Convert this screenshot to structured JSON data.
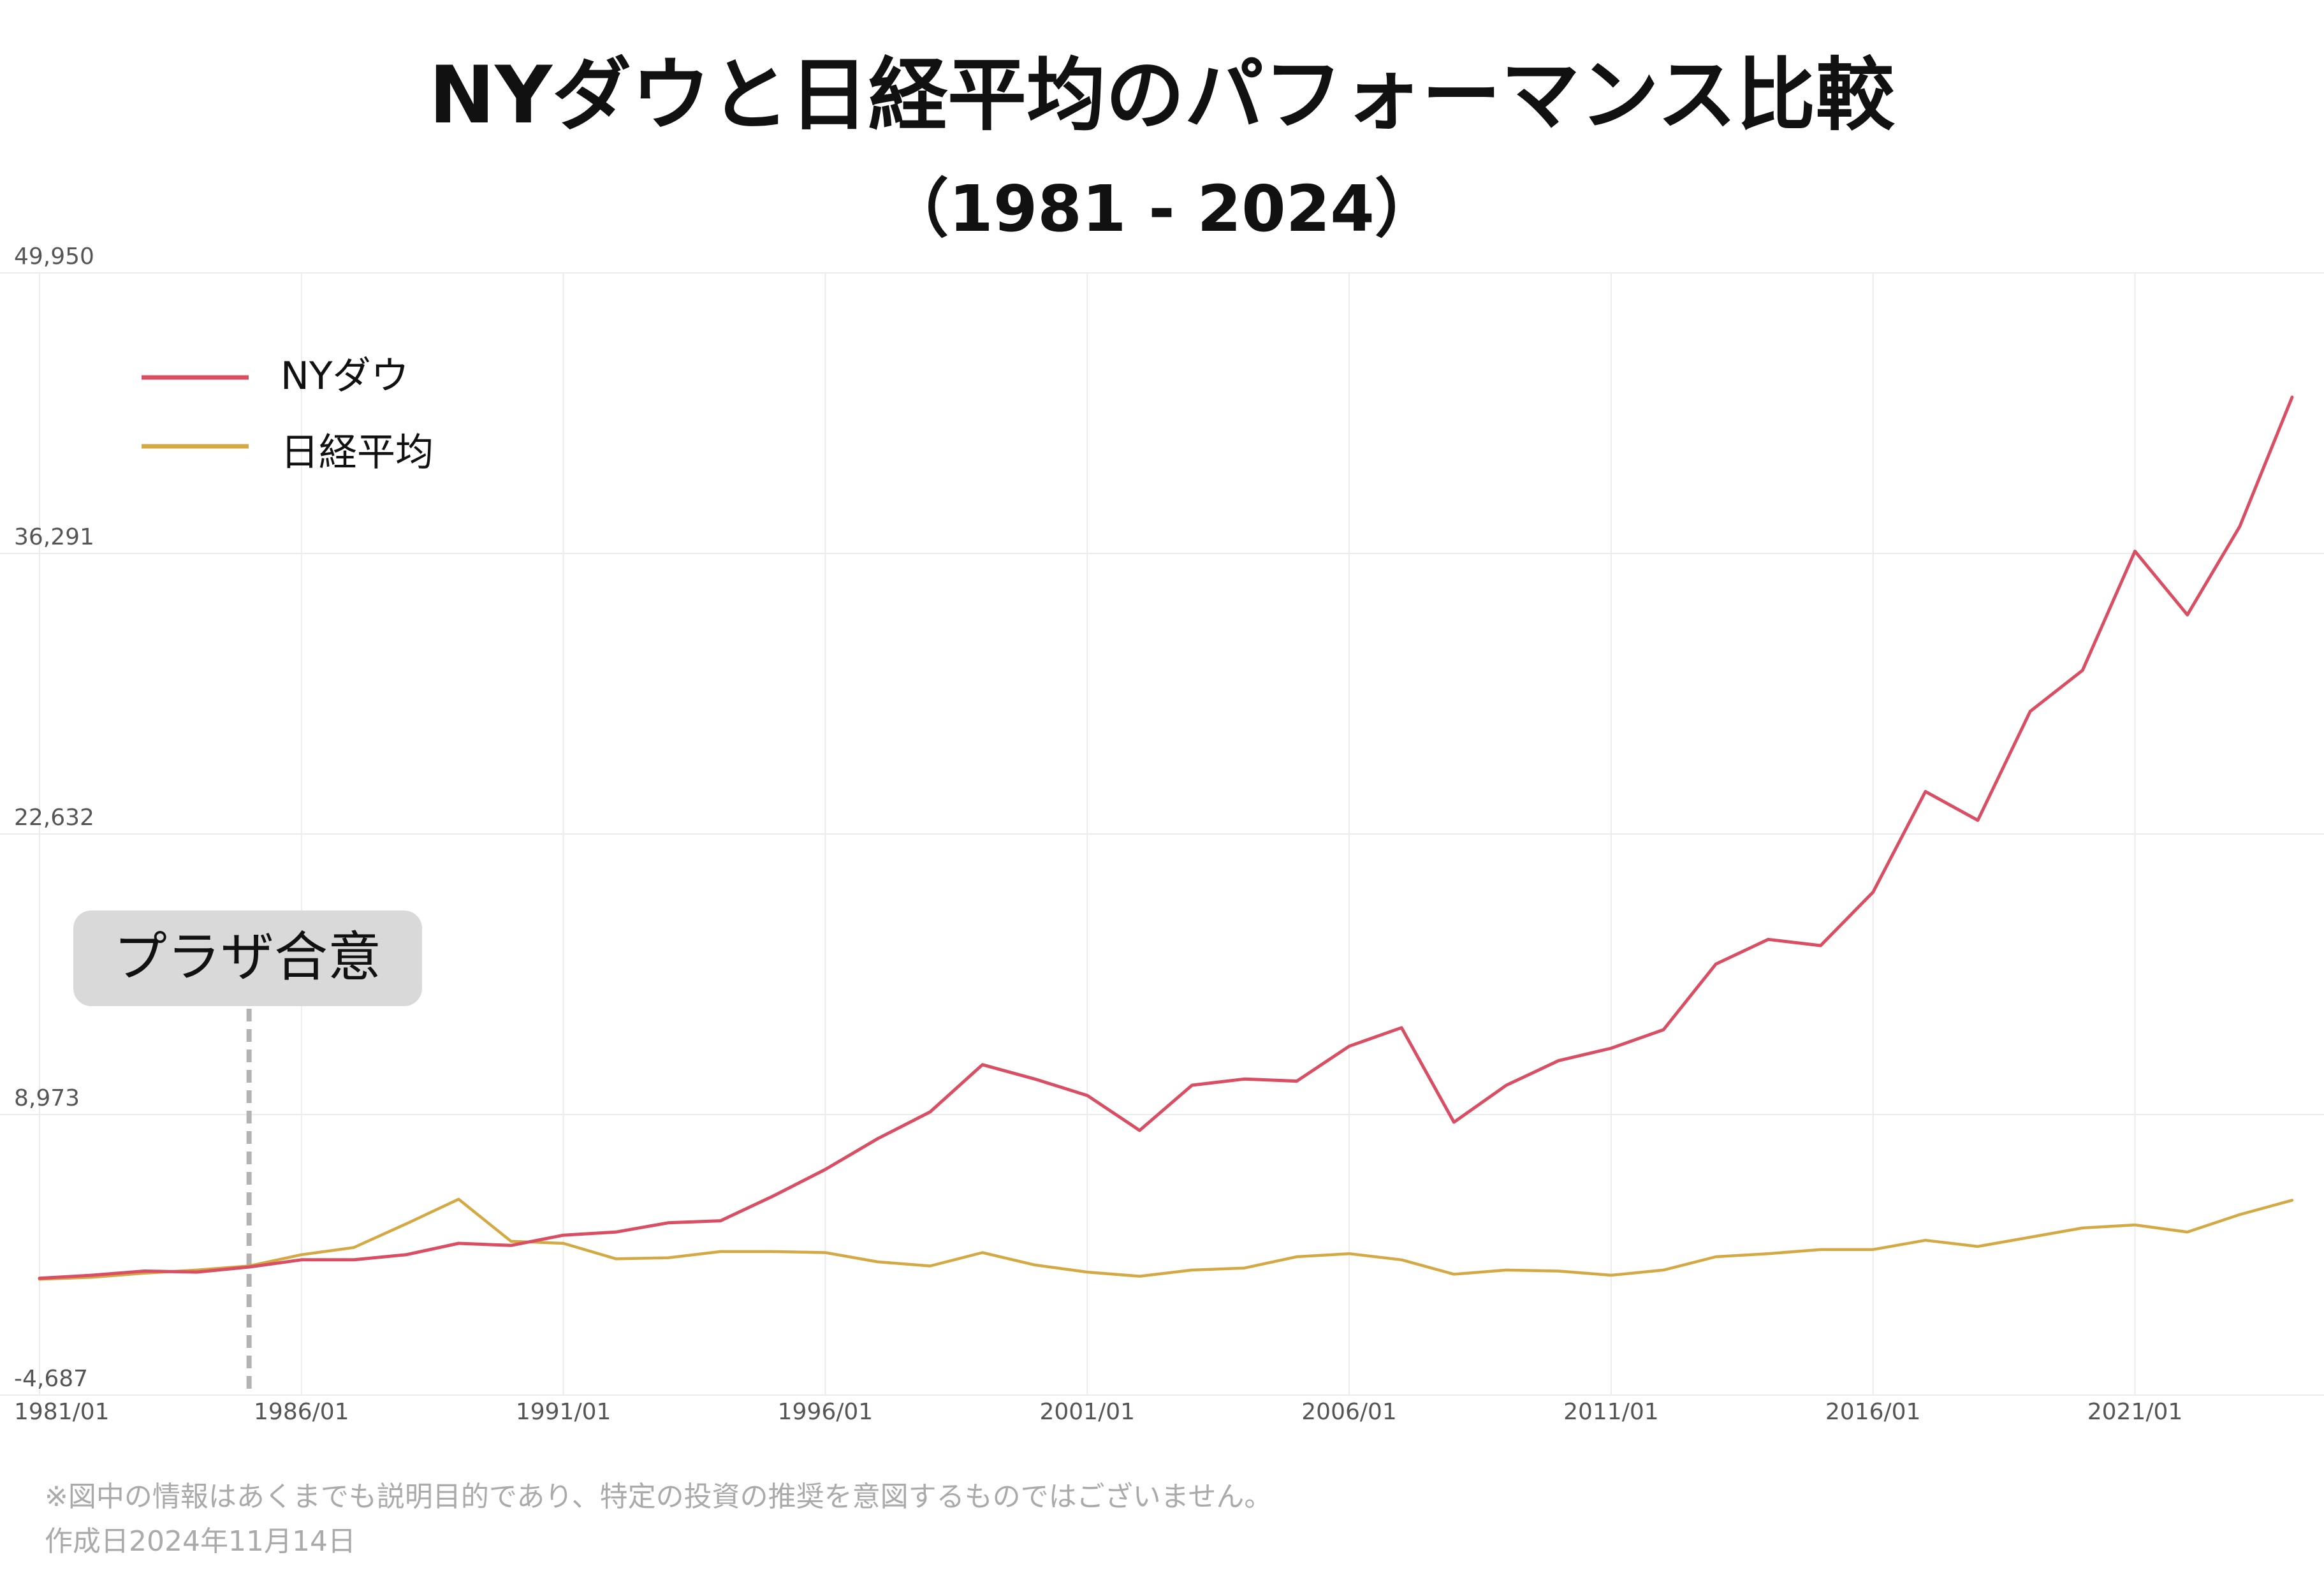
{
  "title": "NYダウと日経平均のパフォーマンス比較",
  "subtitle": "（1981 - 2024）",
  "annotation": {
    "label": "プラザ合意",
    "x": 1985.0
  },
  "footnote": "※図中の情報はあくまでも説明目的であり、特定の投資の推奨を意図するものではございません。",
  "created_date": "作成日2024年11月14日",
  "chart_data": {
    "type": "line",
    "legend_position": "top-left",
    "grid": true,
    "ylim": [
      -4687,
      49950
    ],
    "y_ticks": [
      -4687,
      8973,
      22632,
      36291,
      49950
    ],
    "y_tick_labels": [
      "-4,687",
      "8,973",
      "22,632",
      "36,291",
      "49,950"
    ],
    "xlim": [
      1981,
      2024
    ],
    "x_ticks": [
      1981,
      1986,
      1991,
      1996,
      2001,
      2006,
      2011,
      2016,
      2021
    ],
    "x_tick_labels": [
      "1981/01",
      "1986/01",
      "1991/01",
      "1996/01",
      "2001/01",
      "2006/01",
      "2011/01",
      "2016/01",
      "2021/01"
    ],
    "x": [
      1981,
      1982,
      1983,
      1984,
      1985,
      1986,
      1987,
      1988,
      1989,
      1990,
      1991,
      1992,
      1993,
      1994,
      1995,
      1996,
      1997,
      1998,
      1999,
      2000,
      2001,
      2002,
      2003,
      2004,
      2005,
      2006,
      2007,
      2008,
      2009,
      2010,
      2011,
      2012,
      2013,
      2014,
      2015,
      2016,
      2017,
      2018,
      2019,
      2020,
      2021,
      2022,
      2023,
      2024
    ],
    "series": [
      {
        "name": "NYダウ",
        "color": "#d94e62",
        "values": [
          1000,
          1150,
          1350,
          1300,
          1550,
          1900,
          1900,
          2150,
          2700,
          2600,
          3100,
          3250,
          3700,
          3800,
          5000,
          6300,
          7800,
          9100,
          11400,
          10700,
          9900,
          8200,
          10400,
          10700,
          10600,
          12300,
          13200,
          8600,
          10400,
          11600,
          12200,
          13100,
          16300,
          17500,
          17200,
          19800,
          24700,
          23300,
          28600,
          30600,
          36400,
          33300,
          37600,
          43900
        ]
      },
      {
        "name": "日経平均",
        "color": "#d4a843",
        "values": [
          950,
          1050,
          1250,
          1400,
          1600,
          2150,
          2500,
          3650,
          4850,
          2800,
          2700,
          1950,
          2000,
          2300,
          2300,
          2250,
          1800,
          1600,
          2250,
          1650,
          1300,
          1100,
          1400,
          1500,
          2050,
          2200,
          1900,
          1200,
          1400,
          1350,
          1150,
          1400,
          2050,
          2200,
          2400,
          2400,
          2850,
          2550,
          3000,
          3450,
          3600,
          3250,
          4100,
          4800
        ]
      }
    ]
  }
}
